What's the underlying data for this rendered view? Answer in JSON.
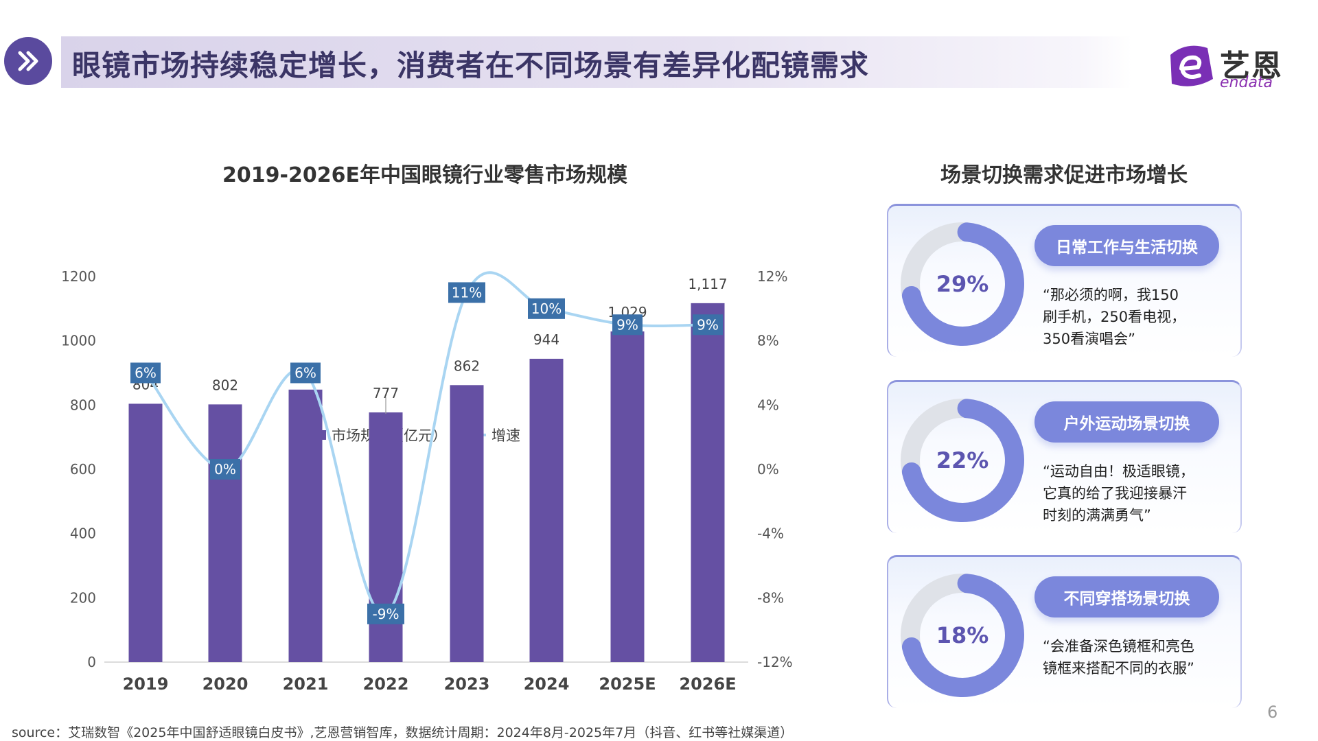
{
  "header": {
    "title": "眼镜市场持续稳定增长，消费者在不同场景有差异化配镜需求",
    "icon": "double-chevron-right-icon"
  },
  "logo": {
    "cn": "艺恩",
    "en": "endata"
  },
  "chart_data": {
    "type": "bar+line",
    "title": "2019-2026E年中国眼镜行业零售市场规模",
    "categories": [
      "2019",
      "2020",
      "2021",
      "2022",
      "2023",
      "2024",
      "2025E",
      "2026E"
    ],
    "series": [
      {
        "name": "市场规模（亿元）",
        "type": "bar",
        "axis": "left",
        "values": [
          804,
          802,
          848,
          777,
          862,
          944,
          1029,
          1117
        ],
        "value_labels": [
          "804",
          "802",
          "",
          "777",
          "862",
          "944",
          "1,029",
          "1,117"
        ],
        "color": "#6550a3"
      },
      {
        "name": "增速",
        "type": "line",
        "axis": "right",
        "values": [
          6,
          0,
          6,
          -9,
          11,
          10,
          9,
          9
        ],
        "value_labels": [
          "6%",
          "0%",
          "6%",
          "-9%",
          "11%",
          "10%",
          "9%",
          "9%"
        ],
        "color": "#a9d5f2",
        "label_bg": "#3b70a8"
      }
    ],
    "left_axis": {
      "ylim": [
        0,
        1200
      ],
      "ticks": [
        "0",
        "200",
        "400",
        "600",
        "800",
        "1000",
        "1200"
      ]
    },
    "right_axis": {
      "ylim": [
        -12,
        12
      ],
      "ticks": [
        "-12%",
        "-8%",
        "-4%",
        "0%",
        "4%",
        "8%",
        "12%"
      ]
    },
    "legend": "top-center",
    "grid": false
  },
  "scenes": {
    "title": "场景切换需求促进市场增长",
    "cards": [
      {
        "pct": "29%",
        "label": "日常工作与生活切换",
        "quote": [
          "“那必须的啊，我150",
          "刷手机，250看电视，",
          "350看演唱会”"
        ]
      },
      {
        "pct": "22%",
        "label": "户外运动场景切换",
        "quote": [
          "“运动自由！极适眼镜，",
          "它真的给了我迎接暴汗",
          "时刻的满满勇气”"
        ]
      },
      {
        "pct": "18%",
        "label": "不同穿搭场景切换",
        "quote": [
          "“会准备深色镜框和亮色",
          "镜框来搭配不同的衣服”"
        ]
      }
    ]
  },
  "footer": {
    "source": "source：艾瑞数智《2025年中国舒适眼镜白皮书》,艺恩营销智库，数据统计周期：2024年8月-2025年7月（抖音、红书等社媒渠道）",
    "page": "6"
  }
}
